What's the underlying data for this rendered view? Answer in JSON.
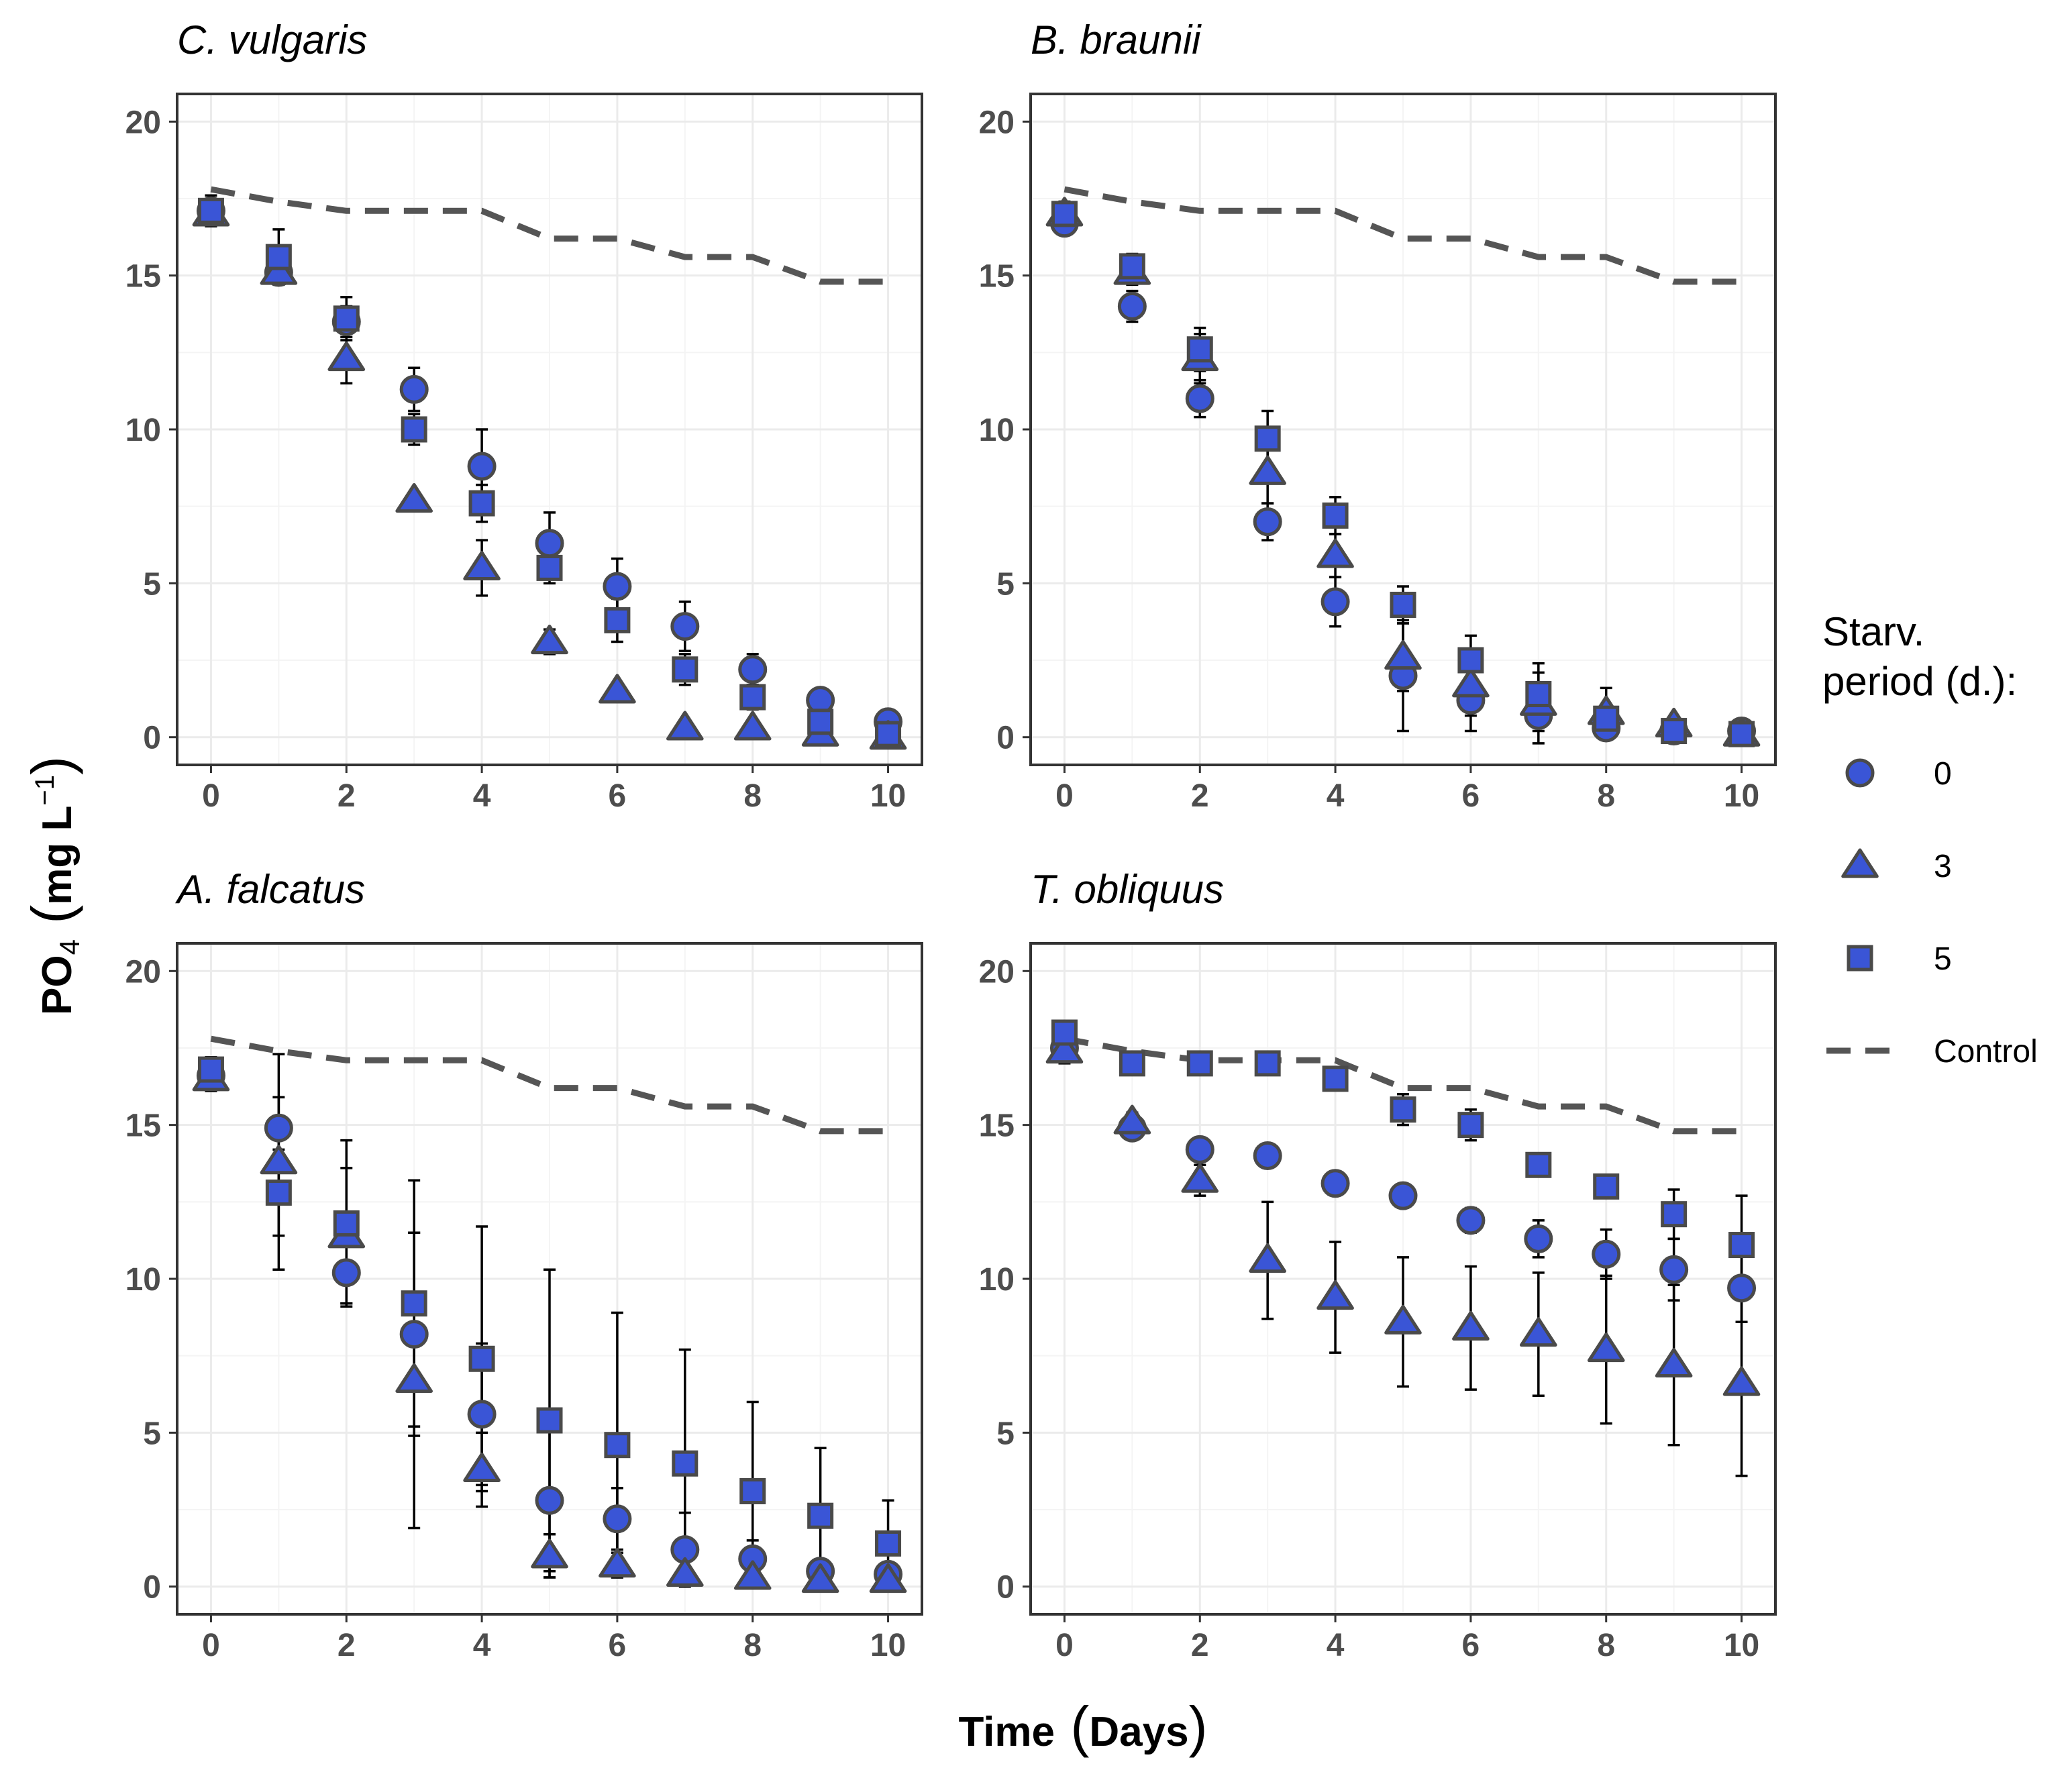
{
  "chart_data": {
    "type": "scatter",
    "x_axis_title": "Time (Days)",
    "y_axis_title": "PO₄ (mg L⁻¹)",
    "y_axis_title_parts": {
      "main": "PO",
      "sub": "4",
      "unit": "mg L",
      "sup": "−1"
    },
    "x_axis_title_parts": {
      "main": "Time",
      "unit": "Days"
    },
    "xlim": [
      -0.5,
      10.5
    ],
    "ylim": [
      -0.9,
      20.9
    ],
    "x_ticks": [
      0,
      2,
      4,
      6,
      8,
      10
    ],
    "y_ticks": [
      0,
      5,
      10,
      15,
      20
    ],
    "grid": true,
    "legend": {
      "title_lines": [
        "Starv.",
        "period (d.):"
      ],
      "entries": [
        {
          "label": "0",
          "shape": "circle"
        },
        {
          "label": "3",
          "shape": "triangle"
        },
        {
          "label": "5",
          "shape": "square"
        },
        {
          "label": "Control",
          "shape": "dashed-line"
        }
      ],
      "placement": "right"
    },
    "colors": {
      "fill": "#3a55d6",
      "stroke": "#4a4a4a",
      "control_line": "#555555",
      "errorbar": "#000000",
      "grid": "#ebebeb"
    },
    "control": {
      "x": [
        0,
        1,
        2,
        3,
        4,
        5,
        6,
        7,
        8,
        9,
        10
      ],
      "values": [
        17.8,
        17.4,
        17.1,
        17.1,
        17.1,
        16.2,
        16.2,
        15.6,
        15.6,
        14.8,
        14.8
      ]
    },
    "panels": [
      {
        "title": "C. vulgaris",
        "series": [
          {
            "name": "0",
            "shape": "circle",
            "values": [
              17.1,
              15.1,
              13.5,
              11.3,
              8.8,
              6.3,
              4.9,
              3.6,
              2.2,
              1.2,
              0.5
            ],
            "err": [
              0.5,
              0.3,
              0.5,
              0.7,
              1.2,
              1.0,
              0.9,
              0.8,
              0.5,
              0.3,
              0.2
            ]
          },
          {
            "name": "3",
            "shape": "triangle",
            "values": [
              17.0,
              15.1,
              12.3,
              7.7,
              5.5,
              3.1,
              1.5,
              0.3,
              0.3,
              0.1,
              0.0
            ],
            "err": [
              0.3,
              0.3,
              0.8,
              0.2,
              0.9,
              0.4,
              0.2,
              0.1,
              0.1,
              0.1,
              0.1
            ]
          },
          {
            "name": "5",
            "shape": "square",
            "values": [
              17.1,
              15.6,
              13.6,
              10.0,
              7.6,
              5.5,
              3.8,
              2.2,
              1.3,
              0.5,
              0.1
            ],
            "err": [
              0.5,
              0.9,
              0.7,
              0.5,
              0.6,
              0.5,
              0.7,
              0.5,
              0.4,
              0.2,
              0.1
            ]
          }
        ]
      },
      {
        "title": "B. braunii",
        "series": [
          {
            "name": "0",
            "shape": "circle",
            "values": [
              16.7,
              14.0,
              11.0,
              7.0,
              4.4,
              2.0,
              1.2,
              0.7,
              0.3,
              0.2,
              0.2
            ],
            "err": [
              0.3,
              0.5,
              0.6,
              0.6,
              0.8,
              1.8,
              1.0,
              0.5,
              0.2,
              0.1,
              0.1
            ]
          },
          {
            "name": "3",
            "shape": "triangle",
            "values": [
              17.0,
              15.1,
              12.3,
              8.6,
              5.9,
              2.6,
              1.7,
              1.1,
              0.8,
              0.4,
              0.1
            ],
            "err": [
              0.3,
              0.4,
              0.8,
              1.0,
              0.7,
              1.1,
              1.0,
              1.3,
              0.8,
              0.2,
              0.1
            ]
          },
          {
            "name": "5",
            "shape": "square",
            "values": [
              17.0,
              15.3,
              12.6,
              9.7,
              7.2,
              4.3,
              2.5,
              1.4,
              0.6,
              0.2,
              0.1
            ],
            "err": [
              0.4,
              0.4,
              0.7,
              0.9,
              0.6,
              0.6,
              0.8,
              0.7,
              0.4,
              0.1,
              0.1
            ]
          }
        ]
      },
      {
        "title": "A. falcatus",
        "series": [
          {
            "name": "0",
            "shape": "circle",
            "values": [
              16.6,
              14.9,
              10.2,
              8.2,
              5.6,
              2.8,
              2.2,
              1.2,
              0.9,
              0.5,
              0.4
            ],
            "err": [
              0.4,
              1.0,
              1.0,
              3.3,
              2.3,
              2.5,
              1.0,
              1.2,
              0.6,
              0.3,
              0.2
            ]
          },
          {
            "name": "3",
            "shape": "triangle",
            "values": [
              16.5,
              13.8,
              11.4,
              6.7,
              3.8,
              1.0,
              0.7,
              0.4,
              0.3,
              0.2,
              0.2
            ],
            "err": [
              0.4,
              3.5,
              2.2,
              4.8,
              1.2,
              0.7,
              0.4,
              0.2,
              0.2,
              0.1,
              0.1
            ]
          },
          {
            "name": "5",
            "shape": "square",
            "values": [
              16.8,
              12.8,
              11.8,
              9.2,
              7.4,
              5.4,
              4.6,
              4.0,
              3.1,
              2.3,
              1.4
            ],
            "err": [
              0.4,
              1.4,
              2.7,
              4.0,
              4.3,
              4.9,
              4.3,
              3.7,
              2.9,
              2.2,
              1.4
            ]
          }
        ]
      },
      {
        "title": "T. obliquus",
        "series": [
          {
            "name": "0",
            "shape": "circle",
            "values": [
              17.5,
              14.9,
              14.2,
              14.0,
              13.1,
              12.7,
              11.9,
              11.3,
              10.8,
              10.3,
              9.7
            ],
            "err": [
              0.3,
              0.2,
              0.3,
              0.2,
              0.2,
              0.2,
              0.4,
              0.6,
              0.8,
              1.0,
              1.1
            ]
          },
          {
            "name": "3",
            "shape": "triangle",
            "values": [
              17.4,
              15.1,
              13.2,
              10.6,
              9.4,
              8.6,
              8.4,
              8.2,
              7.7,
              7.2,
              6.6
            ],
            "err": [
              0.4,
              0.3,
              0.5,
              1.9,
              1.8,
              2.1,
              2.0,
              2.0,
              2.4,
              2.6,
              3.0
            ]
          },
          {
            "name": "5",
            "shape": "square",
            "values": [
              18.0,
              17.0,
              17.0,
              17.0,
              16.5,
              15.5,
              15.0,
              13.7,
              13.0,
              12.1,
              11.1
            ],
            "err": [
              0.3,
              0.3,
              0.2,
              0.2,
              0.3,
              0.5,
              0.5,
              0.3,
              0.3,
              0.8,
              1.6
            ]
          }
        ]
      }
    ]
  }
}
